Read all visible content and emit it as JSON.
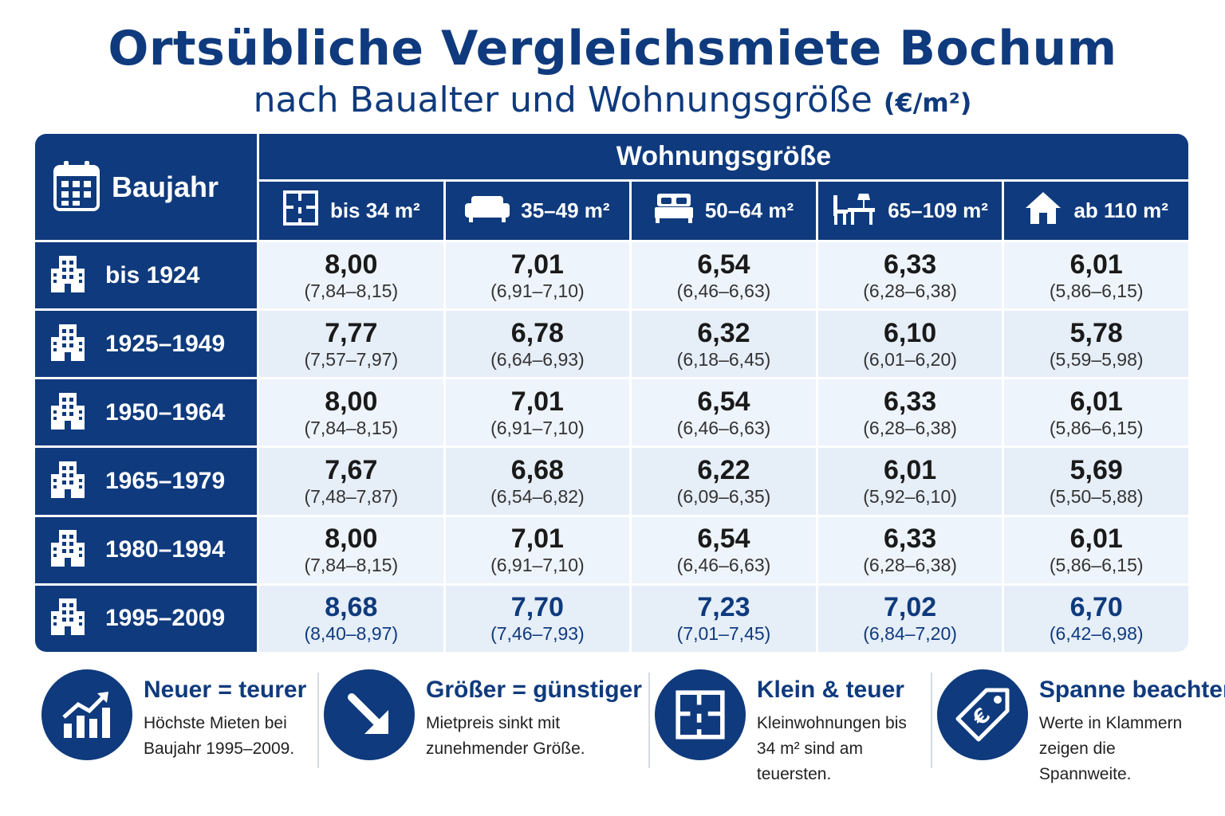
{
  "header": {
    "title": "Ortsübliche Vergleichsmiete Bochum",
    "subtitle": "nach Baualter und Wohnungsgröße",
    "unit": "(€/m²)"
  },
  "table": {
    "corner_label": "Baujahr",
    "group_label": "Wohnungsgröße",
    "columns": [
      {
        "label": "bis 34 m²",
        "icon": "floorplan-icon"
      },
      {
        "label": "35–49 m²",
        "icon": "sofa-icon"
      },
      {
        "label": "50–64 m²",
        "icon": "bed-icon"
      },
      {
        "label": "65–109 m²",
        "icon": "desk-chair-icon"
      },
      {
        "label": "ab 110 m²",
        "icon": "house-icon"
      }
    ],
    "rows": [
      {
        "label": "bis 1924",
        "cells": [
          {
            "value": "8,00",
            "range": "(7,84–8,15)"
          },
          {
            "value": "7,01",
            "range": "(6,91–7,10)"
          },
          {
            "value": "6,54",
            "range": "(6,46–6,63)"
          },
          {
            "value": "6,33",
            "range": "(6,28–6,38)"
          },
          {
            "value": "6,01",
            "range": "(5,86–6,15)"
          }
        ]
      },
      {
        "label": "1925–1949",
        "cells": [
          {
            "value": "7,77",
            "range": "(7,57–7,97)"
          },
          {
            "value": "6,78",
            "range": "(6,64–6,93)"
          },
          {
            "value": "6,32",
            "range": "(6,18–6,45)"
          },
          {
            "value": "6,10",
            "range": "(6,01–6,20)"
          },
          {
            "value": "5,78",
            "range": "(5,59–5,98)"
          }
        ]
      },
      {
        "label": "1950–1964",
        "cells": [
          {
            "value": "8,00",
            "range": "(7,84–8,15)"
          },
          {
            "value": "7,01",
            "range": "(6,91–7,10)"
          },
          {
            "value": "6,54",
            "range": "(6,46–6,63)"
          },
          {
            "value": "6,33",
            "range": "(6,28–6,38)"
          },
          {
            "value": "6,01",
            "range": "(5,86–6,15)"
          }
        ]
      },
      {
        "label": "1965–1979",
        "cells": [
          {
            "value": "7,67",
            "range": "(7,48–7,87)"
          },
          {
            "value": "6,68",
            "range": "(6,54–6,82)"
          },
          {
            "value": "6,22",
            "range": "(6,09–6,35)"
          },
          {
            "value": "6,01",
            "range": "(5,92–6,10)"
          },
          {
            "value": "5,69",
            "range": "(5,50–5,88)"
          }
        ]
      },
      {
        "label": "1980–1994",
        "cells": [
          {
            "value": "8,00",
            "range": "(7,84–8,15)"
          },
          {
            "value": "7,01",
            "range": "(6,91–7,10)"
          },
          {
            "value": "6,54",
            "range": "(6,46–6,63)"
          },
          {
            "value": "6,33",
            "range": "(6,28–6,38)"
          },
          {
            "value": "6,01",
            "range": "(5,86–6,15)"
          }
        ]
      },
      {
        "label": "1995–2009",
        "highlight": true,
        "cells": [
          {
            "value": "8,68",
            "range": "(8,40–8,97)"
          },
          {
            "value": "7,70",
            "range": "(7,46–7,93)"
          },
          {
            "value": "7,23",
            "range": "(7,01–7,45)"
          },
          {
            "value": "7,02",
            "range": "(6,84–7,20)"
          },
          {
            "value": "6,70",
            "range": "(6,42–6,98)"
          }
        ]
      }
    ]
  },
  "tips": [
    {
      "icon": "growth-chart-icon",
      "title": "Neuer = teurer",
      "text": "Höchste Mieten bei Baujahr 1995–2009."
    },
    {
      "icon": "arrow-down-right-icon",
      "title": "Größer = günstiger",
      "text": "Mietpreis sinkt mit zunehmender Größe."
    },
    {
      "icon": "floorplan-icon",
      "title": "Klein & teuer",
      "text": "Kleinwohnungen bis 34 m² sind am teuersten."
    },
    {
      "icon": "euro-tag-icon",
      "title": "Spanne beachten",
      "text": "Werte in Klammern zeigen die Spannweite."
    }
  ],
  "colors": {
    "primary": "#0f3a7d",
    "cell_light": "#eef4fb",
    "cell_alt": "#e6eef8"
  }
}
